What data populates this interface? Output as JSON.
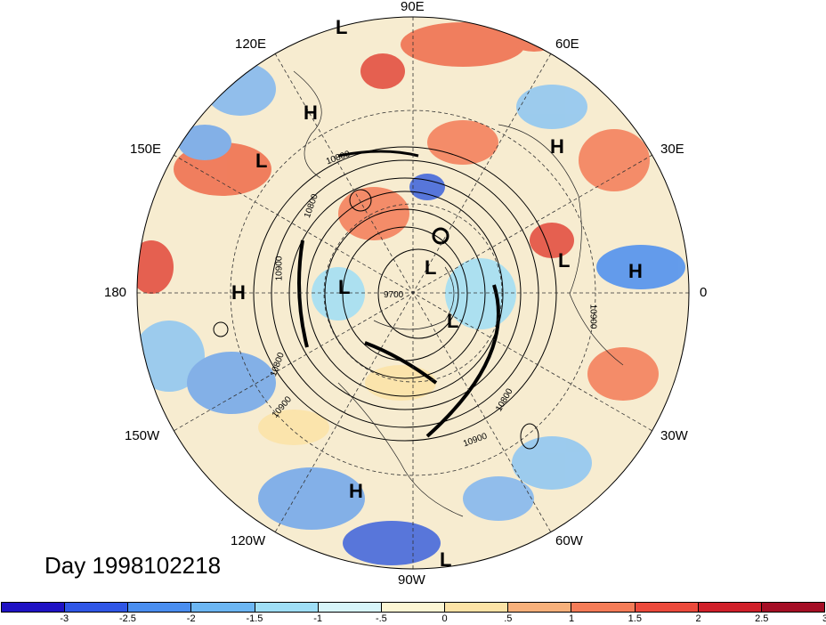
{
  "map": {
    "projection": "polar stereographic (north pole)",
    "timestamp": "Day 1998102218",
    "longitude_labels": [
      {
        "id": "90e",
        "text": "90E"
      },
      {
        "id": "60e",
        "text": "60E"
      },
      {
        "id": "30e",
        "text": "30E"
      },
      {
        "id": "0",
        "text": "0"
      },
      {
        "id": "30w",
        "text": "30W"
      },
      {
        "id": "60w",
        "text": "60W"
      },
      {
        "id": "90w",
        "text": "90W"
      },
      {
        "id": "120w",
        "text": "120W"
      },
      {
        "id": "150w",
        "text": "150W"
      },
      {
        "id": "180",
        "text": "180"
      },
      {
        "id": "150e",
        "text": "150E"
      },
      {
        "id": "120e",
        "text": "120E"
      }
    ],
    "pressure_centers": [
      {
        "type": "L"
      },
      {
        "type": "H"
      },
      {
        "type": "L"
      },
      {
        "type": "H"
      },
      {
        "type": "L"
      },
      {
        "type": "H"
      },
      {
        "type": "H"
      },
      {
        "type": "L"
      },
      {
        "type": "L"
      },
      {
        "type": "L"
      },
      {
        "type": "H"
      },
      {
        "type": "L"
      }
    ],
    "contour_labels": [
      "10900",
      "10800",
      "9700",
      "10900",
      "10800",
      "10900",
      "10800",
      "10900",
      "10800"
    ],
    "colors": {
      "ocean_background": "#f6e9c8",
      "contour_line": "#000000",
      "grid_line": "#333333"
    }
  },
  "colorbar": {
    "colors": [
      "#1f12c4",
      "#2f56e6",
      "#4a8ef0",
      "#6cb6f3",
      "#9fdef6",
      "#d7f4f9",
      "#fdf6d4",
      "#fce3a6",
      "#f7b07b",
      "#f47c58",
      "#ec4a3c",
      "#d0202a",
      "#a50e25"
    ],
    "tick_labels": [
      "-3",
      "-2.5",
      "-2",
      "-1.5",
      "-1",
      "-.5",
      "0",
      ".5",
      "1",
      "1.5",
      "2",
      "2.5",
      "3"
    ]
  }
}
